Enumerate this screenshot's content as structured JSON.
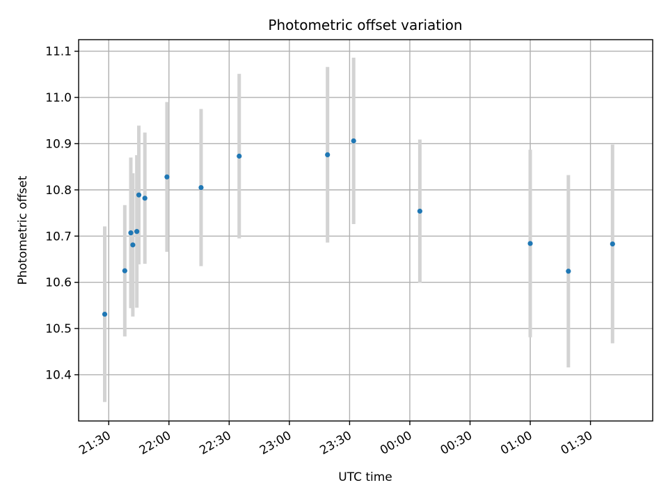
{
  "chart_data": {
    "type": "scatter",
    "title": "Photometric offset variation",
    "xlabel": "UTC time",
    "ylabel": "Photometric offset",
    "x_axis": "time",
    "x_tick_labels": [
      "21:30",
      "22:00",
      "22:30",
      "23:00",
      "23:30",
      "00:00",
      "00:30",
      "01:00",
      "01:30"
    ],
    "y_tick_labels": [
      "10.4",
      "10.5",
      "10.6",
      "10.7",
      "10.8",
      "10.9",
      "11.0",
      "11.1"
    ],
    "xlim": [
      "21:15",
      "02:01"
    ],
    "ylim": [
      10.3,
      11.125
    ],
    "grid": true,
    "marker_color": "#1f77b4",
    "errorbar_color": "#d3d3d3",
    "points": [
      {
        "x": "21:28",
        "y": 10.531,
        "err": 0.19
      },
      {
        "x": "21:38",
        "y": 10.625,
        "err": 0.142
      },
      {
        "x": "21:41",
        "y": 10.707,
        "err": 0.163
      },
      {
        "x": "21:42",
        "y": 10.681,
        "err": 0.155
      },
      {
        "x": "21:44",
        "y": 10.71,
        "err": 0.165
      },
      {
        "x": "21:45",
        "y": 10.789,
        "err": 0.15
      },
      {
        "x": "21:48",
        "y": 10.782,
        "err": 0.142
      },
      {
        "x": "21:59",
        "y": 10.828,
        "err": 0.162
      },
      {
        "x": "22:16",
        "y": 10.805,
        "err": 0.17
      },
      {
        "x": "22:35",
        "y": 10.873,
        "err": 0.178
      },
      {
        "x": "23:19",
        "y": 10.876,
        "err": 0.19
      },
      {
        "x": "23:32",
        "y": 10.906,
        "err": 0.18
      },
      {
        "x": "00:05",
        "y": 10.754,
        "err": 0.155
      },
      {
        "x": "01:00",
        "y": 10.684,
        "err": 0.203
      },
      {
        "x": "01:19",
        "y": 10.624,
        "err": 0.208
      },
      {
        "x": "01:41",
        "y": 10.683,
        "err": 0.215
      }
    ]
  }
}
